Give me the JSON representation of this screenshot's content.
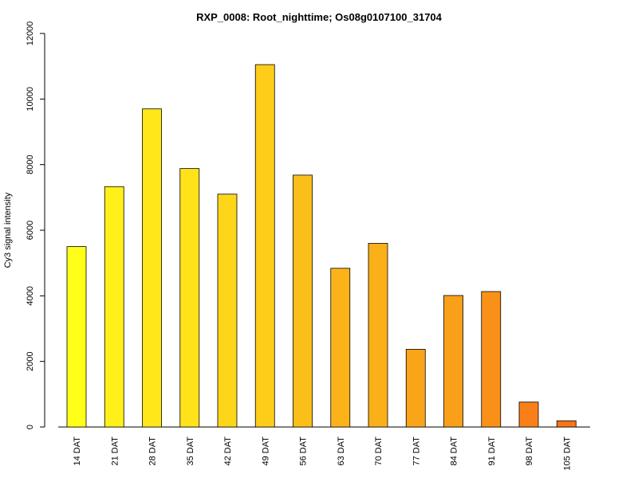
{
  "chart_data": {
    "type": "bar",
    "title": "RXP_0008: Root_nighttime; Os08g0107100_31704",
    "xlabel": "",
    "ylabel": "Cy3 signal intensity",
    "categories": [
      "14 DAT",
      "21 DAT",
      "28 DAT",
      "35 DAT",
      "42 DAT",
      "49 DAT",
      "56 DAT",
      "63 DAT",
      "70 DAT",
      "77 DAT",
      "84 DAT",
      "91 DAT",
      "98 DAT",
      "105 DAT"
    ],
    "values": [
      5500,
      7330,
      9700,
      7880,
      7100,
      11050,
      7680,
      4840,
      5600,
      2370,
      4010,
      4130,
      760,
      190
    ],
    "colors": [
      "#ffff19",
      "#fff019",
      "#ffe719",
      "#ffe219",
      "#fdd619",
      "#fdcd19",
      "#fbbf19",
      "#fbb319",
      "#f9b019",
      "#f9a419",
      "#f99f19",
      "#f99119",
      "#f97f19",
      "#f97419"
    ],
    "yticks": [
      0,
      2000,
      4000,
      6000,
      8000,
      10000,
      12000
    ],
    "ylim": [
      0,
      12000
    ],
    "grid": false,
    "legend": "none"
  }
}
